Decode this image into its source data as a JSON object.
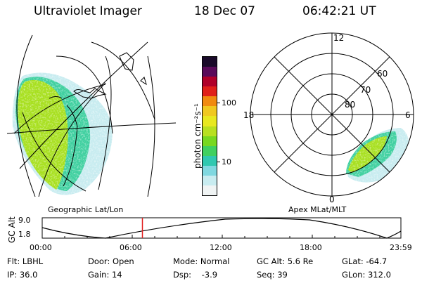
{
  "header": {
    "title": "Ultraviolet Imager",
    "date": "18 Dec 07",
    "time": "06:42:21 UT"
  },
  "colorbar": {
    "unit_label": "photon cm⁻²s⁻¹",
    "ticks": [
      "100",
      "10"
    ],
    "colors": [
      "#1a0a2a",
      "#5a0a5a",
      "#b0002a",
      "#e0201a",
      "#f08a10",
      "#f0c820",
      "#e8e820",
      "#b8e020",
      "#78d820",
      "#40d060",
      "#30c8b0",
      "#80d8e0",
      "#c8ecf0",
      "#f0f4f4"
    ]
  },
  "left_panel": {
    "caption": "Geographic Lat/Lon"
  },
  "right_panel": {
    "caption": "Apex MLat/MLT",
    "mlt_labels": {
      "top": "12",
      "left": "18",
      "right": "6",
      "bottom": "0"
    },
    "lat_labels": [
      "60",
      "70",
      "80"
    ]
  },
  "timeline": {
    "ylabel": "GC Alt",
    "y_ticks": [
      "9.0",
      "1.8"
    ],
    "x_ticks": [
      "00:00",
      "06:00",
      "12:00",
      "18:00",
      "23:59"
    ],
    "current_time_fraction": 0.2794
  },
  "info": {
    "flt": "Flt: LBHL",
    "ip": "IP: 36.0",
    "door": "Door: Open",
    "gain": "Gain: 14",
    "mode": "Mode: Normal",
    "dsp": "Dsp:    -3.9",
    "gcalt": "GC Alt: 5.6 Re",
    "seq": "Seq: 39",
    "glat": "GLat: -64.7",
    "glon": "GLon: 312.0"
  }
}
